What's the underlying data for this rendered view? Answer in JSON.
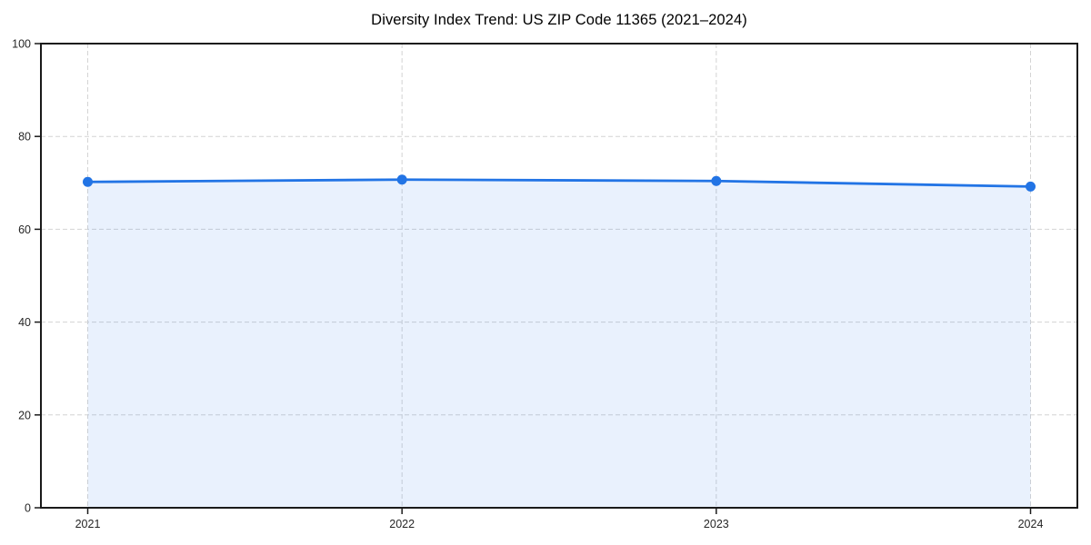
{
  "chart_data": {
    "type": "area",
    "title": "Diversity Index Trend: US ZIP Code 11365 (2021–2024)",
    "x": [
      2021,
      2022,
      2023,
      2024
    ],
    "xtick_labels": [
      "2021",
      "2022",
      "2023",
      "2024"
    ],
    "series": [
      {
        "name": "Diversity Index",
        "values": [
          70.2,
          70.7,
          70.4,
          69.2
        ]
      }
    ],
    "xlabel": "",
    "ylabel": "",
    "ylim": [
      0,
      100
    ],
    "yticks": [
      0,
      20,
      40,
      60,
      80,
      100
    ],
    "grid": true,
    "grid_style": "dashed",
    "legend_position": "none",
    "marker": "circle",
    "colors": {
      "line": "#2274e5",
      "marker": "#2274e5",
      "fill": "rgba(36,117,232,0.10)",
      "grid": "#d4d4d4",
      "spine": "#1a1a1a",
      "tick_text": "#262626",
      "title_text": "#000000",
      "background": "#ffffff"
    }
  }
}
